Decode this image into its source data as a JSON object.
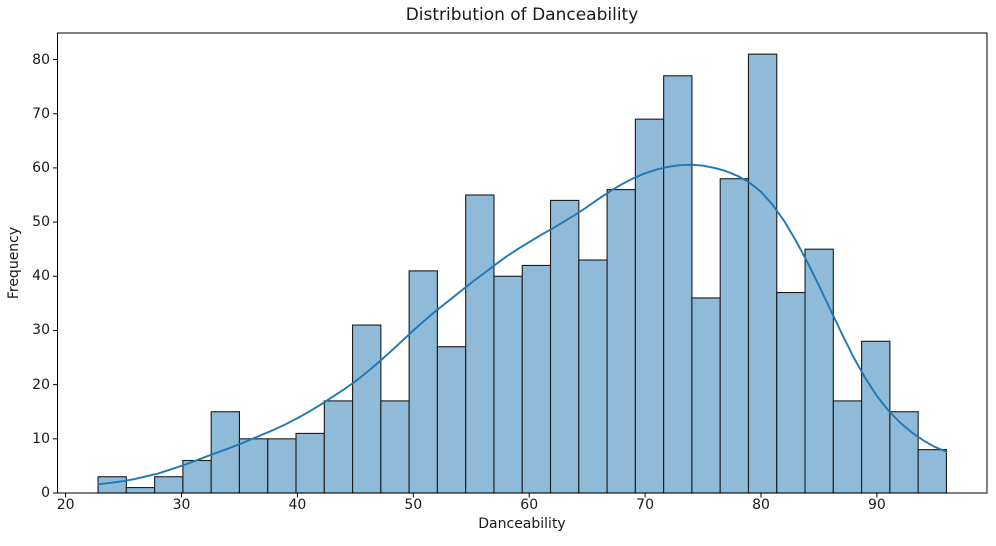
{
  "chart_data": {
    "type": "histogram",
    "title": "Distribution of Danceability",
    "xlabel": "Danceability",
    "ylabel": "Frequency",
    "bins": {
      "start": 22.8,
      "width": 2.44,
      "count": 30
    },
    "bin_counts": [
      3,
      1,
      3,
      6,
      15,
      10,
      10,
      11,
      17,
      31,
      17,
      41,
      27,
      55,
      40,
      42,
      54,
      43,
      56,
      69,
      77,
      36,
      58,
      81,
      37,
      45,
      17,
      28,
      15,
      8
    ],
    "kde_points": [
      [
        22.8,
        1.6
      ],
      [
        24,
        1.9
      ],
      [
        25,
        2.2
      ],
      [
        26,
        2.6
      ],
      [
        27,
        3.1
      ],
      [
        28,
        3.6
      ],
      [
        29,
        4.3
      ],
      [
        30,
        5.0
      ],
      [
        31,
        5.8
      ],
      [
        32,
        6.6
      ],
      [
        33,
        7.4
      ],
      [
        34,
        8.2
      ],
      [
        35,
        9.0
      ],
      [
        36,
        9.9
      ],
      [
        37,
        10.8
      ],
      [
        38,
        11.7
      ],
      [
        39,
        12.7
      ],
      [
        40,
        13.8
      ],
      [
        41,
        15.0
      ],
      [
        42,
        16.3
      ],
      [
        43,
        17.7
      ],
      [
        44,
        19.1
      ],
      [
        45,
        20.6
      ],
      [
        46,
        22.3
      ],
      [
        47,
        24.1
      ],
      [
        48,
        26.0
      ],
      [
        49,
        28.0
      ],
      [
        50,
        30.0
      ],
      [
        51,
        31.9
      ],
      [
        52,
        33.7
      ],
      [
        53,
        35.4
      ],
      [
        54,
        37.1
      ],
      [
        55,
        38.8
      ],
      [
        56,
        40.4
      ],
      [
        57,
        42.0
      ],
      [
        58,
        43.6
      ],
      [
        59,
        45.0
      ],
      [
        60,
        46.3
      ],
      [
        61,
        47.6
      ],
      [
        62,
        48.8
      ],
      [
        63,
        50.1
      ],
      [
        64,
        51.4
      ],
      [
        65,
        52.8
      ],
      [
        66,
        54.3
      ],
      [
        67,
        55.7
      ],
      [
        68,
        57.0
      ],
      [
        69,
        58.1
      ],
      [
        70,
        59.0
      ],
      [
        71,
        59.7
      ],
      [
        72,
        60.2
      ],
      [
        73,
        60.5
      ],
      [
        74,
        60.6
      ],
      [
        75,
        60.4
      ],
      [
        76,
        60.0
      ],
      [
        77,
        59.4
      ],
      [
        78,
        58.5
      ],
      [
        79,
        57.3
      ],
      [
        80,
        55.6
      ],
      [
        81,
        53.2
      ],
      [
        82,
        50.2
      ],
      [
        83,
        46.6
      ],
      [
        84,
        42.6
      ],
      [
        85,
        38.3
      ],
      [
        86,
        33.8
      ],
      [
        87,
        29.3
      ],
      [
        88,
        25.0
      ],
      [
        89,
        21.2
      ],
      [
        90,
        17.9
      ],
      [
        91,
        15.2
      ],
      [
        92,
        13.0
      ],
      [
        93,
        11.2
      ],
      [
        94,
        9.7
      ],
      [
        95,
        8.5
      ],
      [
        96,
        7.6
      ]
    ],
    "xticks": [
      20,
      30,
      40,
      50,
      60,
      70,
      80,
      90
    ],
    "yticks": [
      0,
      10,
      20,
      30,
      40,
      50,
      60,
      70,
      80
    ],
    "xlim": [
      19.3,
      99.5
    ],
    "ylim": [
      0,
      84.9
    ],
    "grid": false,
    "legend_position": "none",
    "colors": {
      "bar_fill": "#8fbbd9",
      "bar_edge": "#1a1a1a",
      "kde_line": "#1f77b4",
      "axis": "#000000",
      "text": "#1a1a1a",
      "background": "#ffffff"
    }
  }
}
